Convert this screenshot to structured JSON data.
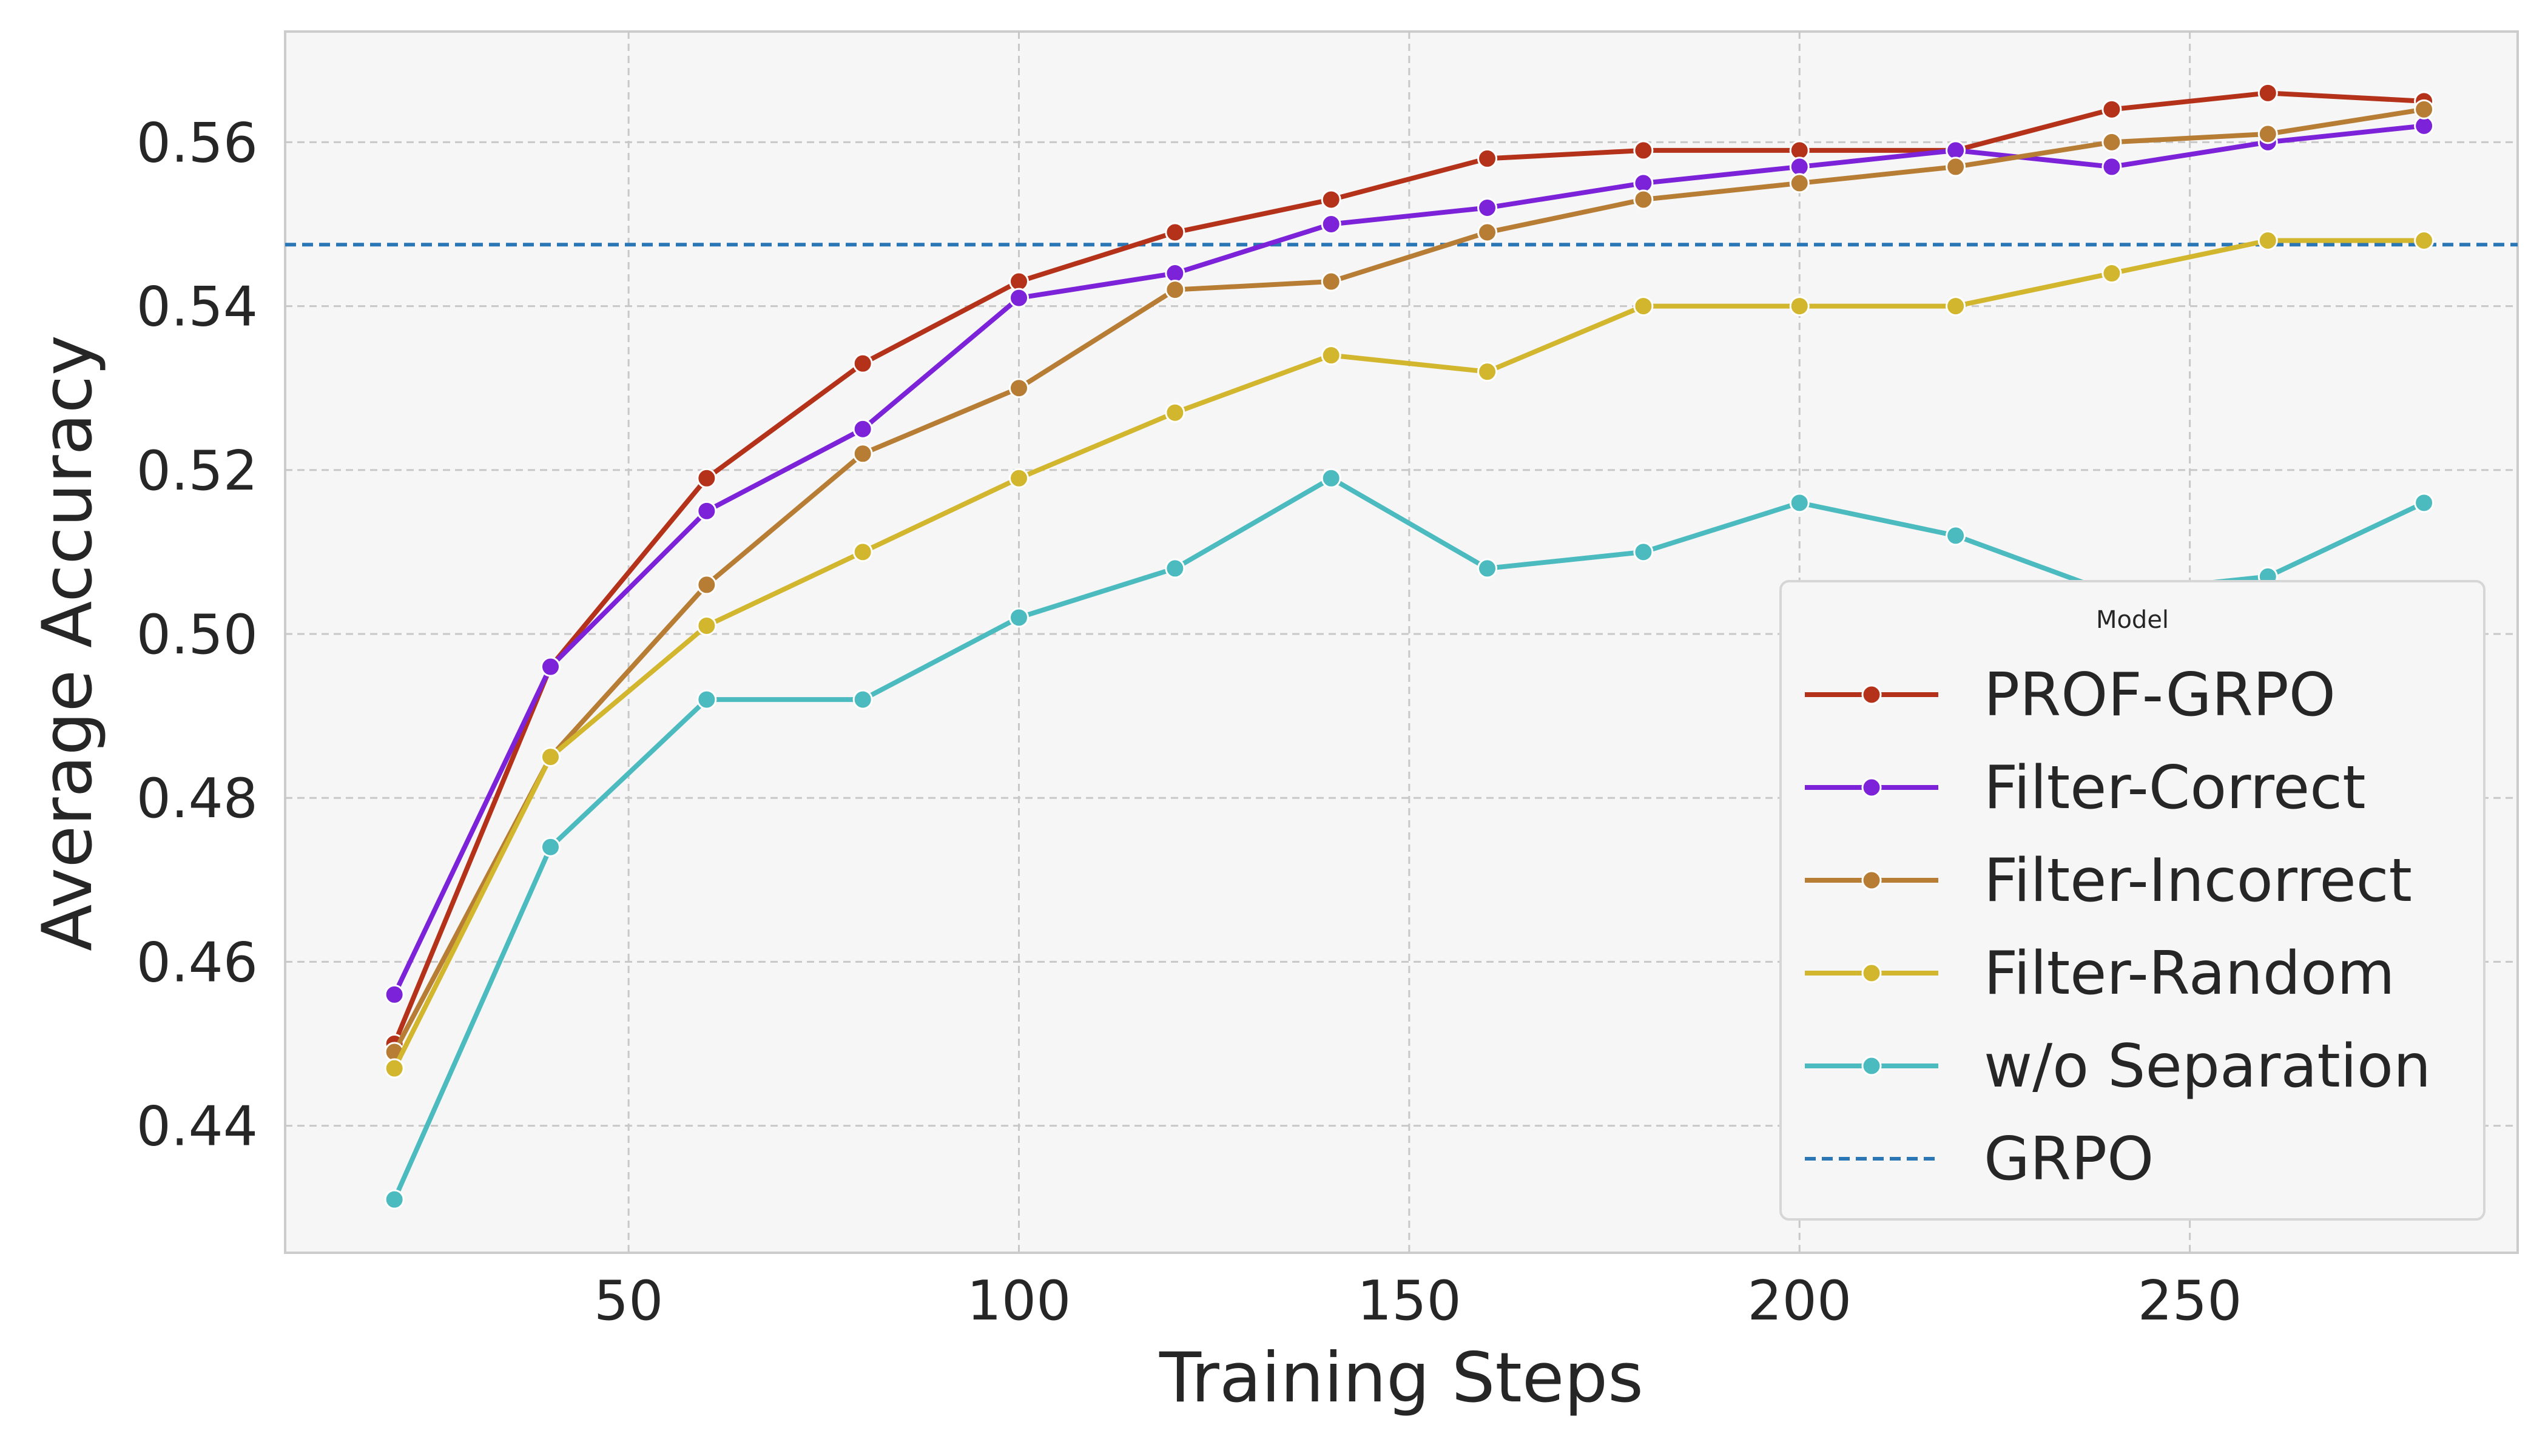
{
  "chart_data": {
    "type": "line",
    "title": "",
    "xlabel": "Training Steps",
    "ylabel": "Average Accuracy",
    "x": [
      20,
      40,
      60,
      80,
      100,
      120,
      140,
      160,
      180,
      200,
      220,
      240,
      260,
      280
    ],
    "xlim": [
      6,
      292
    ],
    "ylim": [
      0.4245,
      0.5735
    ],
    "xticks": [
      50,
      100,
      150,
      200,
      250
    ],
    "yticks": [
      0.44,
      0.46,
      0.48,
      0.5,
      0.52,
      0.54,
      0.56
    ],
    "grid": true,
    "legend": {
      "title": "Model",
      "placement": "lower-right"
    },
    "series": [
      {
        "name": "PROF-GRPO",
        "color": "#b5321a",
        "values": [
          0.45,
          0.496,
          0.519,
          0.533,
          0.543,
          0.549,
          0.553,
          0.558,
          0.559,
          0.559,
          0.559,
          0.564,
          0.566,
          0.565
        ]
      },
      {
        "name": "Filter-Correct",
        "color": "#7c22d8",
        "values": [
          0.456,
          0.496,
          0.515,
          0.525,
          0.541,
          0.544,
          0.55,
          0.552,
          0.555,
          0.557,
          0.559,
          0.557,
          0.56,
          0.562
        ]
      },
      {
        "name": "Filter-Incorrect",
        "color": "#b77d34",
        "values": [
          0.449,
          0.485,
          0.506,
          0.522,
          0.53,
          0.542,
          0.543,
          0.549,
          0.553,
          0.555,
          0.557,
          0.56,
          0.561,
          0.564
        ]
      },
      {
        "name": "Filter-Random",
        "color": "#d2b62e",
        "values": [
          0.447,
          0.485,
          0.501,
          0.51,
          0.519,
          0.527,
          0.534,
          0.532,
          0.54,
          0.54,
          0.54,
          0.544,
          0.548,
          0.548
        ]
      },
      {
        "name": "w/o Separation",
        "color": "#4bbbc0",
        "values": [
          0.431,
          0.474,
          0.492,
          0.492,
          0.502,
          0.508,
          0.519,
          0.508,
          0.51,
          0.516,
          0.512,
          0.505,
          0.507,
          0.516
        ]
      }
    ],
    "reference_lines": [
      {
        "name": "GRPO",
        "y": 0.5475,
        "color": "#2b77b5",
        "style": "dashed"
      }
    ]
  }
}
